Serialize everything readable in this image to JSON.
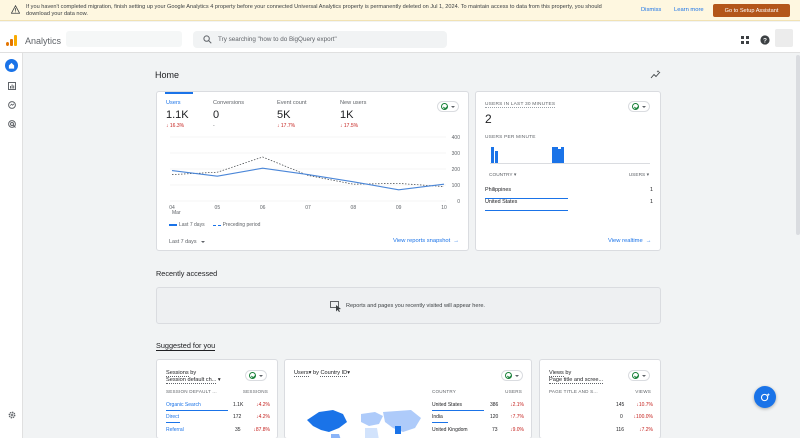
{
  "banner": {
    "message": "If you haven't completed migration, finish setting up your Google Analytics 4 property before your connected Universal Analytics property is permanently deleted on Jul 1, 2024. To maintain access to data from this property, you should download your data now.",
    "dismiss": "Dismiss",
    "learn_more": "Learn more",
    "setup": "Go to Setup Assistant"
  },
  "header": {
    "app_title": "Analytics",
    "search_placeholder": "Try searching \"how to do BigQuery export\""
  },
  "page": {
    "title": "Home"
  },
  "overview": {
    "metrics": [
      {
        "label": "Users",
        "value": "1.1K",
        "change": "16.3%"
      },
      {
        "label": "Conversions",
        "value": "0",
        "change": "-"
      },
      {
        "label": "Event count",
        "value": "5K",
        "change": "17.7%"
      },
      {
        "label": "New users",
        "value": "1K",
        "change": "17.5%"
      }
    ],
    "legend_current": "Last 7 days",
    "legend_previous": "Preceding period",
    "date_range": "Last 7 days",
    "view_link": "View reports snapshot"
  },
  "chart_data": {
    "type": "line",
    "x": [
      "04",
      "05",
      "06",
      "07",
      "08",
      "09",
      "10"
    ],
    "x_sublabel": "Mar",
    "series": [
      {
        "name": "Last 7 days",
        "values": [
          190,
          155,
          205,
          165,
          120,
          70,
          105
        ]
      },
      {
        "name": "Preceding period",
        "values": [
          165,
          180,
          275,
          160,
          105,
          110,
          90
        ]
      }
    ],
    "yticks": [
      0,
      100,
      200,
      300,
      400
    ],
    "ylim": [
      0,
      400
    ]
  },
  "realtime": {
    "title": "USERS IN LAST 30 MINUTES",
    "value": "2",
    "per_minute": "USERS PER MINUTE",
    "col_country": "COUNTRY",
    "col_users": "USERS",
    "rows": [
      {
        "country": "Philippines",
        "users": "1"
      },
      {
        "country": "United States",
        "users": "1"
      }
    ],
    "view_link": "View realtime"
  },
  "recent": {
    "title": "Recently accessed",
    "empty": "Reports and pages you recently visited will appear here."
  },
  "suggested": {
    "title": "Suggested for you",
    "sessions": {
      "title_1": "Sessions",
      "title_by": "by",
      "title_2": "Session default ch...",
      "col_1": "SESSION DEFAULT ...",
      "col_2": "SESSIONS",
      "rows": [
        {
          "name": "Organic Search",
          "value": "1.1K",
          "change": "4.2%"
        },
        {
          "name": "Direct",
          "value": "172",
          "change": "4.2%"
        },
        {
          "name": "Referral",
          "value": "35",
          "change": "87.8%"
        }
      ]
    },
    "country": {
      "title_1": "Users",
      "title_by": "by",
      "title_2": "Country ID",
      "col_1": "COUNTRY",
      "col_2": "USERS",
      "rows": [
        {
          "name": "United States",
          "value": "386",
          "change": "2.1%"
        },
        {
          "name": "India",
          "value": "120",
          "change": "7.7%"
        },
        {
          "name": "United Kingdom",
          "value": "73",
          "change": "9.0%"
        }
      ]
    },
    "views": {
      "title_1": "Views",
      "title_by": "by",
      "title_2": "Page title and scree...",
      "col_1": "PAGE TITLE AND S...",
      "col_2": "VIEWS",
      "rows": [
        {
          "value": "145",
          "change": "10.7%"
        },
        {
          "value": "0",
          "change": "100.0%"
        },
        {
          "value": "116",
          "change": "7.2%"
        }
      ]
    }
  }
}
